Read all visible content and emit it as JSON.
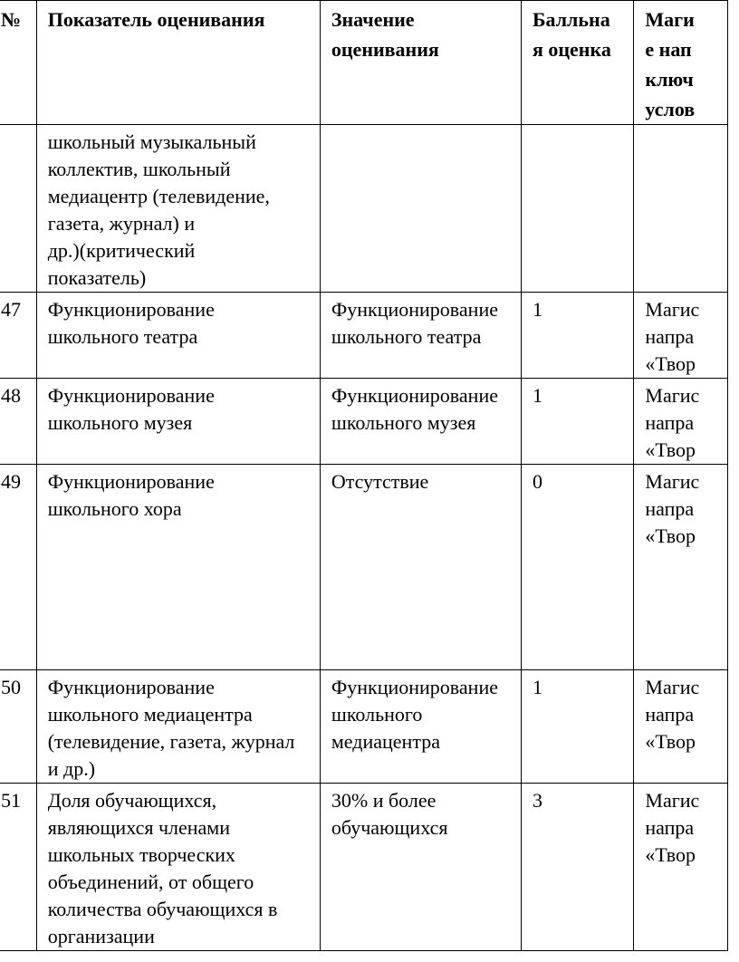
{
  "header": [
    "№",
    [
      "Показатель оценивания"
    ],
    [
      "Значение",
      "оценивания"
    ],
    [
      "Балльна",
      "я оценка"
    ],
    [
      "Маги",
      "е нап",
      "ключ",
      "услов"
    ]
  ],
  "rows": [
    {
      "num": "",
      "indicator": [
        "школьный музыкальный",
        "коллектив, школьный",
        "медиацентр (телевидение,",
        "газета, журнал) и",
        "др.)(критический",
        "показатель)"
      ],
      "value": [],
      "score": "",
      "direction": []
    },
    {
      "num": "47",
      "indicator": [
        "Функционирование",
        "школьного театра"
      ],
      "value": [
        "Функционирование",
        "школьного театра"
      ],
      "score": "1",
      "direction": [
        "Магис",
        "напра",
        "«Твор"
      ]
    },
    {
      "num": "48",
      "indicator": [
        "Функционирование",
        "школьного музея"
      ],
      "value": [
        "Функционирование",
        "школьного музея"
      ],
      "score": "1",
      "direction": [
        "Магис",
        "напра",
        "«Твор"
      ]
    },
    {
      "num": "49",
      "indicator": [
        "Функционирование",
        "школьного хора"
      ],
      "value": [
        "Отсутствие"
      ],
      "score": "0",
      "direction": [
        "Магис",
        "напра",
        "«Твор"
      ]
    },
    {
      "num": "50",
      "indicator": [
        "Функционирование",
        "школьного медиацентра",
        "(телевидение, газета, журнал",
        "и др.)"
      ],
      "value": [
        "Функционирование",
        "школьного",
        "медиацентра"
      ],
      "score": "1",
      "direction": [
        "Магис",
        "напра",
        "«Твор"
      ]
    },
    {
      "num": "51",
      "indicator": [
        "Доля обучающихся,",
        "являющихся членами",
        "школьных творческих",
        "объединений, от общего",
        "количества обучающихся в",
        "организации"
      ],
      "value": [
        "30% и более",
        "обучающихся"
      ],
      "score": "3",
      "direction": [
        "Магис",
        "напра",
        "«Твор"
      ]
    }
  ]
}
